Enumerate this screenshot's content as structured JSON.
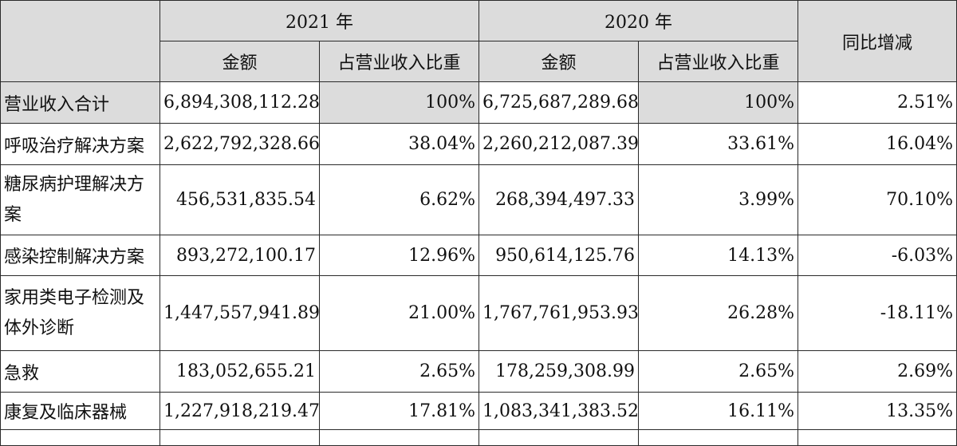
{
  "header": {
    "year_2021": "2021 年",
    "year_2020": "2020 年",
    "yoy": "同比增减",
    "amount": "金额",
    "share": "占营业收入比重"
  },
  "total": {
    "label": "营业收入合计",
    "amount_2021": "6,894,308,112.28",
    "share_2021": "100%",
    "amount_2020": "6,725,687,289.68",
    "share_2020": "100%",
    "yoy": "2.51%"
  },
  "rows": [
    {
      "label": "呼吸治疗解决方案",
      "amount_2021": "2,622,792,328.66",
      "share_2021": "38.04%",
      "amount_2020": "2,260,212,087.39",
      "share_2020": "33.61%",
      "yoy": "16.04%"
    },
    {
      "label": "糖尿病护理解决方案",
      "amount_2021": "456,531,835.54",
      "share_2021": "6.62%",
      "amount_2020": "268,394,497.33",
      "share_2020": "3.99%",
      "yoy": "70.10%"
    },
    {
      "label": "感染控制解决方案",
      "amount_2021": "893,272,100.17",
      "share_2021": "12.96%",
      "amount_2020": "950,614,125.76",
      "share_2020": "14.13%",
      "yoy": "-6.03%"
    },
    {
      "label": "家用类电子检测及体外诊断",
      "amount_2021": "1,447,557,941.89",
      "share_2021": "21.00%",
      "amount_2020": "1,767,761,953.93",
      "share_2020": "26.28%",
      "yoy": "-18.11%"
    },
    {
      "label": "急救",
      "amount_2021": "183,052,655.21",
      "share_2021": "2.65%",
      "amount_2020": "178,259,308.99",
      "share_2020": "2.65%",
      "yoy": "2.69%"
    },
    {
      "label": "康复及临床器械",
      "amount_2021": "1,227,918,219.47",
      "share_2021": "17.81%",
      "amount_2020": "1,083,341,383.52",
      "share_2020": "16.11%",
      "yoy": "13.35%"
    }
  ]
}
